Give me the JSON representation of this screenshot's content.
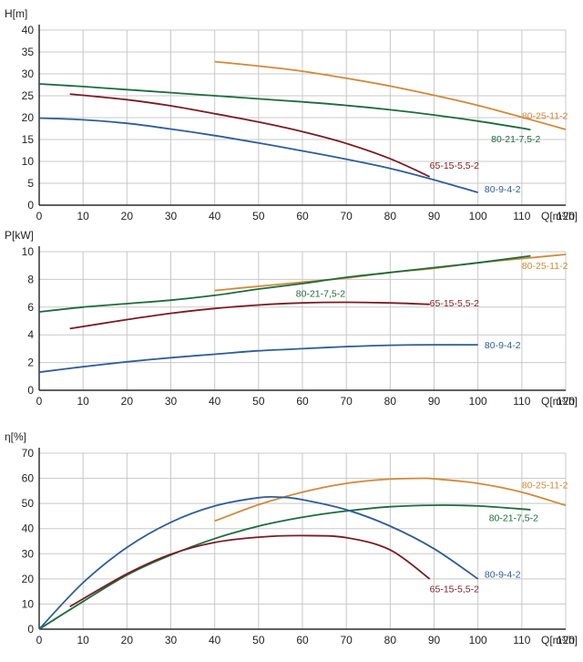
{
  "chart_data": [
    {
      "type": "line",
      "ylabel": "H[m]",
      "xlabel": "Q[m³/h]",
      "xlim": [
        0,
        120
      ],
      "ylim": [
        0,
        40
      ],
      "xticks": [
        "0",
        "10",
        "20",
        "30",
        "40",
        "50",
        "60",
        "70",
        "80",
        "90",
        "100",
        "110",
        "120"
      ],
      "yticks": [
        "0",
        "5",
        "10",
        "15",
        "20",
        "25",
        "30",
        "35",
        "40"
      ],
      "grid": true,
      "series": [
        {
          "name": "80-25-11-2",
          "color": "#d08a38",
          "label_at": [
            110,
            20.5
          ],
          "x": [
            40,
            50,
            60,
            70,
            80,
            90,
            100,
            110,
            120
          ],
          "y": [
            32.8,
            31.8,
            30.6,
            29.0,
            27.2,
            25.1,
            22.8,
            20.1,
            17.3
          ]
        },
        {
          "name": "80-21-7,5-2",
          "color": "#1e6b3e",
          "label_at": [
            103,
            15.2
          ],
          "x": [
            0,
            10,
            20,
            30,
            40,
            50,
            60,
            70,
            80,
            90,
            100,
            110,
            112
          ],
          "y": [
            27.7,
            27.1,
            26.4,
            25.7,
            25.0,
            24.3,
            23.6,
            22.8,
            21.8,
            20.6,
            19.2,
            17.6,
            17.2
          ]
        },
        {
          "name": "65-15-5,5-2",
          "color": "#7a1c24",
          "label_at": [
            89,
            9.2
          ],
          "x": [
            7,
            20,
            30,
            40,
            50,
            60,
            70,
            80,
            89
          ],
          "y": [
            25.4,
            24.1,
            22.7,
            20.9,
            19.0,
            16.8,
            14.1,
            10.6,
            6.5
          ]
        },
        {
          "name": "80-9-4-2",
          "color": "#2e5d9a",
          "label_at": [
            101.5,
            3.7
          ],
          "x": [
            0,
            10,
            20,
            30,
            40,
            50,
            60,
            70,
            80,
            90,
            100
          ],
          "y": [
            19.9,
            19.5,
            18.7,
            17.4,
            15.9,
            14.2,
            12.4,
            10.5,
            8.4,
            5.8,
            2.9
          ]
        }
      ]
    },
    {
      "type": "line",
      "ylabel": "P[kW]",
      "xlabel": "Q[m³/h]",
      "xlim": [
        0,
        120
      ],
      "ylim": [
        0,
        10
      ],
      "xticks": [
        "0",
        "10",
        "20",
        "30",
        "40",
        "50",
        "60",
        "70",
        "80",
        "90",
        "100",
        "110",
        "120"
      ],
      "yticks": [
        "0",
        "2",
        "4",
        "6",
        "8",
        "10"
      ],
      "grid": true,
      "series": [
        {
          "name": "80-25-11-2",
          "color": "#d08a38",
          "label_at": [
            110,
            9.0
          ],
          "x": [
            40,
            50,
            60,
            70,
            80,
            90,
            100,
            110,
            120
          ],
          "y": [
            7.2,
            7.5,
            7.8,
            8.1,
            8.5,
            8.8,
            9.2,
            9.5,
            9.8
          ]
        },
        {
          "name": "80-21-7,5-2",
          "color": "#1e6b3e",
          "label_at": [
            58.5,
            7.0
          ],
          "x": [
            0,
            10,
            20,
            30,
            40,
            50,
            60,
            70,
            80,
            90,
            100,
            112
          ],
          "y": [
            5.65,
            6.0,
            6.25,
            6.5,
            6.85,
            7.3,
            7.7,
            8.15,
            8.5,
            8.85,
            9.2,
            9.7
          ]
        },
        {
          "name": "65-15-5,5-2",
          "color": "#7a1c24",
          "label_at": [
            89,
            6.3
          ],
          "x": [
            7,
            20,
            30,
            40,
            50,
            60,
            70,
            80,
            89
          ],
          "y": [
            4.45,
            5.1,
            5.55,
            5.9,
            6.15,
            6.3,
            6.35,
            6.3,
            6.2
          ]
        },
        {
          "name": "80-9-4-2",
          "color": "#2e5d9a",
          "label_at": [
            101.5,
            3.3
          ],
          "x": [
            0,
            10,
            20,
            30,
            40,
            50,
            60,
            70,
            80,
            90,
            100
          ],
          "y": [
            1.3,
            1.7,
            2.05,
            2.35,
            2.6,
            2.85,
            3.0,
            3.15,
            3.25,
            3.28,
            3.28
          ]
        }
      ]
    },
    {
      "type": "line",
      "ylabel": "η[%]",
      "xlabel": "Q[m³/h]",
      "xlim": [
        0,
        120
      ],
      "ylim": [
        0,
        70
      ],
      "xticks": [
        "0",
        "10",
        "20",
        "30",
        "40",
        "50",
        "60",
        "70",
        "80",
        "90",
        "100",
        "110",
        "120"
      ],
      "yticks": [
        "0",
        "10",
        "20",
        "30",
        "40",
        "50",
        "60",
        "70"
      ],
      "grid": true,
      "series": [
        {
          "name": "80-25-11-2",
          "color": "#d08a38",
          "label_at": [
            110,
            57.5
          ],
          "x": [
            40,
            50,
            60,
            70,
            80,
            87,
            90,
            100,
            110,
            120
          ],
          "y": [
            43.0,
            49.5,
            54.5,
            58.0,
            59.7,
            60.0,
            59.8,
            58.0,
            54.5,
            49.2
          ]
        },
        {
          "name": "80-21-7,5-2",
          "color": "#1e6b3e",
          "label_at": [
            102.5,
            44.5
          ],
          "x": [
            0,
            10,
            20,
            30,
            40,
            50,
            60,
            70,
            80,
            90,
            100,
            112
          ],
          "y": [
            0,
            11.0,
            21.5,
            29.5,
            36.0,
            41.0,
            44.5,
            47.0,
            48.7,
            49.3,
            49.0,
            47.5
          ]
        },
        {
          "name": "65-15-5,5-2",
          "color": "#7a1c24",
          "label_at": [
            89,
            16.2
          ],
          "x": [
            7,
            20,
            30,
            40,
            50,
            60,
            70,
            80,
            89
          ],
          "y": [
            9.0,
            22.0,
            29.8,
            34.5,
            36.6,
            37.2,
            36.4,
            31.5,
            20.0
          ]
        },
        {
          "name": "80-9-4-2",
          "color": "#2e5d9a",
          "label_at": [
            101.5,
            22.0
          ],
          "x": [
            0,
            10,
            20,
            30,
            40,
            50,
            55,
            60,
            70,
            80,
            90,
            100
          ],
          "y": [
            0,
            18.5,
            32.5,
            42.5,
            49.0,
            52.3,
            52.5,
            51.5,
            47.5,
            41.0,
            32.0,
            20.0
          ]
        }
      ]
    }
  ]
}
